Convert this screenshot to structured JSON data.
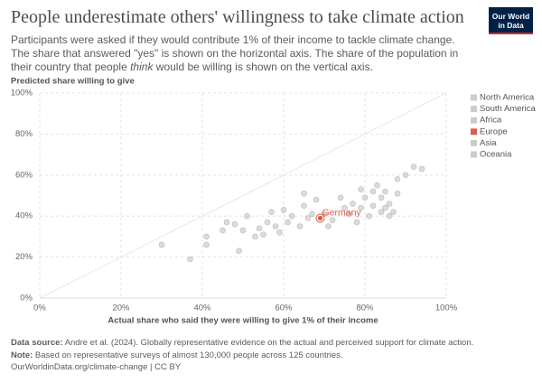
{
  "header": {
    "title": "People underestimate others' willingness to take climate action",
    "subtitle": [
      "Participants were asked if they would contribute 1% of their income to tackle climate change. The share that answered \"yes\" is shown on the horizontal axis. The share of the population in their country that people ",
      "think",
      " would be willing is shown on the vertical axis."
    ],
    "logo": [
      "Our World",
      "in Data"
    ]
  },
  "chart_data": {
    "type": "scatter",
    "ylabel": "Predicted share willing to give",
    "xlabel": "Actual share who said they were willing to give 1% of their income",
    "xlim": [
      0,
      100
    ],
    "ylim": [
      0,
      100
    ],
    "xticks": [
      {
        "value": 0,
        "label": "0%"
      },
      {
        "value": 20,
        "label": "20%"
      },
      {
        "value": 40,
        "label": "40%"
      },
      {
        "value": 60,
        "label": "60%"
      },
      {
        "value": 80,
        "label": "80%"
      },
      {
        "value": 100,
        "label": "100%"
      }
    ],
    "yticks": [
      {
        "value": 0,
        "label": "0%"
      },
      {
        "value": 20,
        "label": "20%"
      },
      {
        "value": 40,
        "label": "40%"
      },
      {
        "value": 60,
        "label": "60%"
      },
      {
        "value": 80,
        "label": "80%"
      },
      {
        "value": 100,
        "label": "100%"
      }
    ],
    "grid": true,
    "series": [
      {
        "name": "North America",
        "color": "#cccccc",
        "x": [
          65,
          71,
          74,
          77,
          80,
          84
        ],
        "y": [
          45,
          35,
          49,
          46,
          49,
          49
        ]
      },
      {
        "name": "South America",
        "color": "#cccccc",
        "x": [
          82,
          83,
          85,
          88,
          90,
          92,
          94
        ],
        "y": [
          52,
          55,
          52,
          58,
          60,
          64,
          63
        ]
      },
      {
        "name": "Africa",
        "color": "#cccccc",
        "x": [
          30,
          37,
          41,
          41,
          45,
          46,
          48,
          49,
          50,
          51,
          53,
          54,
          55
        ],
        "y": [
          26,
          19,
          26,
          30,
          33,
          37,
          36,
          23,
          33,
          40,
          30,
          34,
          31
        ]
      },
      {
        "name": "Europe",
        "color": "#dc5c4a",
        "x": [
          69
        ],
        "y": [
          39
        ],
        "point_labels": [
          "Germany"
        ]
      },
      {
        "name": "Asia",
        "color": "#cccccc",
        "x": [
          56,
          57,
          58,
          59,
          60,
          61,
          62,
          64,
          65,
          66,
          67,
          68,
          70,
          72,
          75,
          76
        ],
        "y": [
          37,
          42,
          35,
          32,
          43,
          37,
          40,
          35,
          51,
          39,
          41,
          48,
          41,
          38,
          44,
          41
        ]
      },
      {
        "name": "Oceania",
        "color": "#cccccc",
        "x": [
          78,
          79,
          79,
          81,
          82,
          84,
          85,
          86,
          86,
          87,
          88
        ],
        "y": [
          37,
          53,
          44,
          40,
          45,
          42,
          44,
          40,
          46,
          42,
          51
        ]
      }
    ]
  },
  "footer": {
    "source_label": "Data source:",
    "source": "Andre et al. (2024). Globally representative evidence on the actual and perceived support for climate action.",
    "note_label": "Note:",
    "note": "Based on representative surveys of almost 130,000 people across 125 countries.",
    "url": "OurWorldinData.org/climate-change | CC BY"
  }
}
